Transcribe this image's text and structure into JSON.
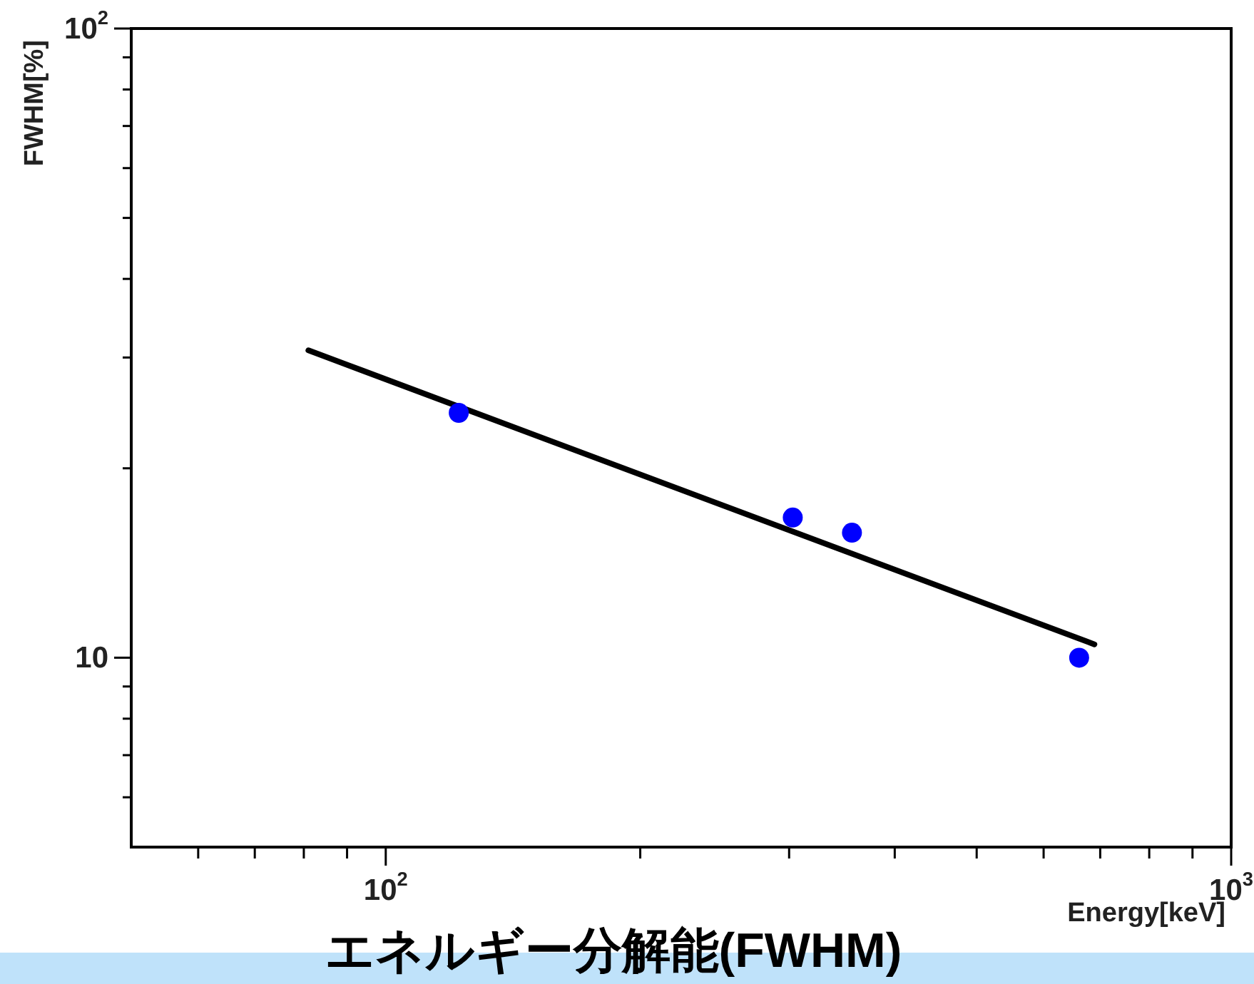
{
  "chart_data": {
    "type": "scatter",
    "title": "エネルギー分解能(FWHM)",
    "xlabel": "Energy[keV]",
    "ylabel": "FWHM[%]",
    "log": "xy",
    "marker": "circle",
    "grid": false,
    "xlim": [
      50,
      1000
    ],
    "ylim": [
      5,
      100
    ],
    "xticks": [
      {
        "value": 60,
        "label": null
      },
      {
        "value": 70,
        "label": null
      },
      {
        "value": 80,
        "label": null
      },
      {
        "value": 90,
        "label": null
      },
      {
        "value": 100,
        "label": "10$^{2}$"
      },
      {
        "value": 200,
        "label": null
      },
      {
        "value": 300,
        "label": null
      },
      {
        "value": 400,
        "label": null
      },
      {
        "value": 500,
        "label": null
      },
      {
        "value": 600,
        "label": null
      },
      {
        "value": 700,
        "label": null
      },
      {
        "value": 800,
        "label": null
      },
      {
        "value": 900,
        "label": null
      },
      {
        "value": 1000,
        "label": "10$^{3}$"
      }
    ],
    "yticks": [
      {
        "value": 6,
        "label": null
      },
      {
        "value": 7,
        "label": null
      },
      {
        "value": 8,
        "label": null
      },
      {
        "value": 9,
        "label": null
      },
      10,
      {
        "value": 20,
        "label": null
      },
      {
        "value": 30,
        "label": null
      },
      {
        "value": 40,
        "label": null
      },
      {
        "value": 50,
        "label": null
      },
      {
        "value": 60,
        "label": null
      },
      {
        "value": 70,
        "label": null
      },
      {
        "value": 80,
        "label": null
      },
      {
        "value": 90,
        "label": null
      },
      {
        "value": 100,
        "label": "10$^{2}$"
      }
    ],
    "series": [
      {
        "color": "#0000ff",
        "x": [
          122,
          303,
          356,
          661
        ],
        "values": [
          24.5,
          16.7,
          15.8,
          10.0
        ]
      },
      {
        "type": "line",
        "color": "#000000",
        "marker": "none",
        "x": [
          81,
          689
        ],
        "values": [
          30.8,
          10.5
        ]
      }
    ]
  }
}
